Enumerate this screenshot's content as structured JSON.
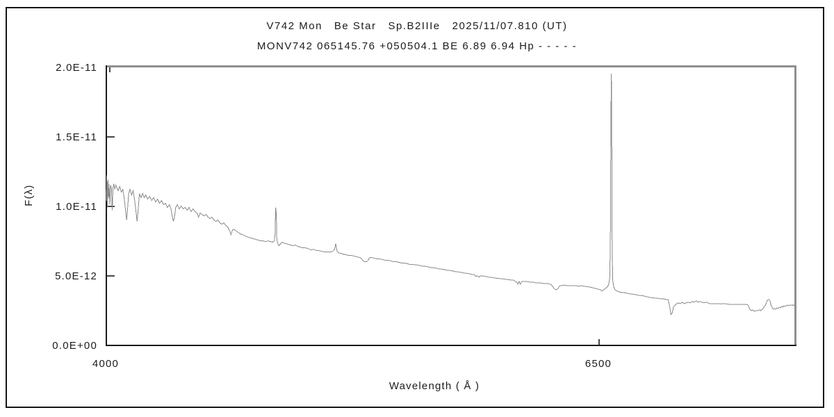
{
  "window": {
    "background": "#ffffff",
    "outer_border_color": "#151515",
    "frame_gray": "#8f8f8f",
    "frame_black": "#1a1a1a"
  },
  "chart_data": {
    "type": "line",
    "title": "V742 Mon   Be Star   Sp.B2IIIe   2025/11/07.810 (UT)",
    "subtitle": "MONV742 065145.76 +050504.1 BE 6.89 6.94 Hp - - - - -",
    "xlabel": "Wavelength ( Å )",
    "ylabel": "F(λ)",
    "xlim": [
      4000,
      7494
    ],
    "ylim_e12": [
      0,
      20
    ],
    "grid": false,
    "legend": false,
    "line_color": "#8a8a8a",
    "x_ticks": [
      {
        "value": 4000,
        "label": "4000"
      },
      {
        "value": 6500,
        "label": "6500"
      }
    ],
    "y_ticks": [
      {
        "value_e12": 0,
        "label": "0.0E+00"
      },
      {
        "value_e12": 5,
        "label": "5.0E-12"
      },
      {
        "value_e12": 10,
        "label": "1.0E-11"
      },
      {
        "value_e12": 15,
        "label": "1.5E-11"
      },
      {
        "value_e12": 20,
        "label": "2.0E-11"
      }
    ],
    "flux_scale": "points give [wavelength_angstrom, flux_times_1e12]",
    "points": [
      [
        4000,
        10.4
      ],
      [
        4002,
        12.2
      ],
      [
        4005,
        9.9
      ],
      [
        4008,
        11.9
      ],
      [
        4011,
        10.5
      ],
      [
        4014,
        11.6
      ],
      [
        4018,
        10.1
      ],
      [
        4022,
        11.5
      ],
      [
        4026,
        11.2
      ],
      [
        4030,
        9.7
      ],
      [
        4034,
        11.3
      ],
      [
        4038,
        11.6
      ],
      [
        4043,
        11.2
      ],
      [
        4048,
        11.5
      ],
      [
        4060,
        11.1
      ],
      [
        4068,
        11.4
      ],
      [
        4076,
        11.0
      ],
      [
        4084,
        11.2
      ],
      [
        4092,
        10.4
      ],
      [
        4098,
        9.6
      ],
      [
        4103,
        9.0
      ],
      [
        4108,
        9.8
      ],
      [
        4113,
        10.9
      ],
      [
        4120,
        11.2
      ],
      [
        4128,
        10.8
      ],
      [
        4136,
        11.1
      ],
      [
        4144,
        10.4
      ],
      [
        4150,
        9.7
      ],
      [
        4156,
        8.9
      ],
      [
        4162,
        9.8
      ],
      [
        4168,
        10.9
      ],
      [
        4176,
        10.6
      ],
      [
        4184,
        10.9
      ],
      [
        4192,
        10.6
      ],
      [
        4200,
        10.8
      ],
      [
        4210,
        10.5
      ],
      [
        4220,
        10.7
      ],
      [
        4230,
        10.4
      ],
      [
        4240,
        10.6
      ],
      [
        4250,
        10.3
      ],
      [
        4260,
        10.5
      ],
      [
        4270,
        10.2
      ],
      [
        4280,
        10.4
      ],
      [
        4290,
        10.1
      ],
      [
        4300,
        10.2
      ],
      [
        4310,
        9.9
      ],
      [
        4320,
        10.1
      ],
      [
        4328,
        9.8
      ],
      [
        4334,
        9.3
      ],
      [
        4340,
        8.9
      ],
      [
        4346,
        9.2
      ],
      [
        4352,
        9.9
      ],
      [
        4360,
        10.1
      ],
      [
        4370,
        9.8
      ],
      [
        4380,
        10.0
      ],
      [
        4390,
        9.8
      ],
      [
        4400,
        9.9
      ],
      [
        4410,
        9.7
      ],
      [
        4420,
        9.9
      ],
      [
        4430,
        9.6
      ],
      [
        4440,
        9.8
      ],
      [
        4450,
        9.6
      ],
      [
        4460,
        9.5
      ],
      [
        4468,
        9.2
      ],
      [
        4476,
        9.5
      ],
      [
        4486,
        9.4
      ],
      [
        4496,
        9.3
      ],
      [
        4506,
        9.4
      ],
      [
        4516,
        9.2
      ],
      [
        4526,
        9.1
      ],
      [
        4536,
        9.2
      ],
      [
        4546,
        9.0
      ],
      [
        4556,
        8.9
      ],
      [
        4566,
        9.0
      ],
      [
        4576,
        8.8
      ],
      [
        4586,
        8.7
      ],
      [
        4596,
        8.8
      ],
      [
        4606,
        8.6
      ],
      [
        4616,
        8.5
      ],
      [
        4626,
        8.2
      ],
      [
        4632,
        7.95
      ],
      [
        4640,
        8.3
      ],
      [
        4650,
        8.3
      ],
      [
        4660,
        8.2
      ],
      [
        4670,
        8.1
      ],
      [
        4680,
        8.0
      ],
      [
        4690,
        7.95
      ],
      [
        4700,
        7.9
      ],
      [
        4712,
        7.8
      ],
      [
        4724,
        7.75
      ],
      [
        4736,
        7.7
      ],
      [
        4748,
        7.65
      ],
      [
        4760,
        7.6
      ],
      [
        4772,
        7.55
      ],
      [
        4784,
        7.5
      ],
      [
        4796,
        7.5
      ],
      [
        4808,
        7.45
      ],
      [
        4820,
        7.5
      ],
      [
        4832,
        7.45
      ],
      [
        4844,
        7.4
      ],
      [
        4852,
        7.5
      ],
      [
        4856,
        8.0
      ],
      [
        4859,
        9.9
      ],
      [
        4862,
        9.5
      ],
      [
        4865,
        7.6
      ],
      [
        4870,
        7.3
      ],
      [
        4876,
        7.15
      ],
      [
        4884,
        7.3
      ],
      [
        4892,
        7.4
      ],
      [
        4900,
        7.35
      ],
      [
        4912,
        7.3
      ],
      [
        4924,
        7.25
      ],
      [
        4936,
        7.2
      ],
      [
        4948,
        7.15
      ],
      [
        4960,
        7.2
      ],
      [
        4972,
        7.1
      ],
      [
        4984,
        7.05
      ],
      [
        4996,
        7.0
      ],
      [
        5010,
        7.0
      ],
      [
        5024,
        6.95
      ],
      [
        5038,
        6.85
      ],
      [
        5052,
        6.9
      ],
      [
        5066,
        6.8
      ],
      [
        5080,
        6.8
      ],
      [
        5094,
        6.75
      ],
      [
        5108,
        6.7
      ],
      [
        5122,
        6.7
      ],
      [
        5136,
        6.7
      ],
      [
        5148,
        6.75
      ],
      [
        5158,
        6.9
      ],
      [
        5164,
        7.3
      ],
      [
        5170,
        6.8
      ],
      [
        5178,
        6.65
      ],
      [
        5190,
        6.6
      ],
      [
        5204,
        6.55
      ],
      [
        5218,
        6.5
      ],
      [
        5232,
        6.45
      ],
      [
        5246,
        6.45
      ],
      [
        5260,
        6.4
      ],
      [
        5274,
        6.35
      ],
      [
        5288,
        6.3
      ],
      [
        5296,
        6.2
      ],
      [
        5304,
        6.05
      ],
      [
        5312,
        6.0
      ],
      [
        5320,
        6.0
      ],
      [
        5328,
        6.1
      ],
      [
        5336,
        6.3
      ],
      [
        5348,
        6.3
      ],
      [
        5362,
        6.25
      ],
      [
        5376,
        6.2
      ],
      [
        5390,
        6.2
      ],
      [
        5404,
        6.15
      ],
      [
        5418,
        6.1
      ],
      [
        5432,
        6.1
      ],
      [
        5446,
        6.05
      ],
      [
        5460,
        6.0
      ],
      [
        5474,
        6.0
      ],
      [
        5488,
        5.95
      ],
      [
        5502,
        5.9
      ],
      [
        5516,
        5.9
      ],
      [
        5530,
        5.85
      ],
      [
        5544,
        5.8
      ],
      [
        5558,
        5.8
      ],
      [
        5572,
        5.78
      ],
      [
        5586,
        5.75
      ],
      [
        5600,
        5.7
      ],
      [
        5614,
        5.68
      ],
      [
        5628,
        5.65
      ],
      [
        5642,
        5.6
      ],
      [
        5656,
        5.58
      ],
      [
        5670,
        5.55
      ],
      [
        5684,
        5.5
      ],
      [
        5698,
        5.48
      ],
      [
        5712,
        5.45
      ],
      [
        5726,
        5.4
      ],
      [
        5740,
        5.38
      ],
      [
        5754,
        5.35
      ],
      [
        5768,
        5.3
      ],
      [
        5782,
        5.28
      ],
      [
        5796,
        5.25
      ],
      [
        5810,
        5.2
      ],
      [
        5824,
        5.18
      ],
      [
        5838,
        5.15
      ],
      [
        5852,
        5.1
      ],
      [
        5866,
        5.08
      ],
      [
        5874,
        4.95
      ],
      [
        5882,
        5.0
      ],
      [
        5890,
        4.9
      ],
      [
        5898,
        5.0
      ],
      [
        5912,
        4.98
      ],
      [
        5926,
        4.95
      ],
      [
        5940,
        4.9
      ],
      [
        5954,
        4.88
      ],
      [
        5968,
        4.85
      ],
      [
        5982,
        4.82
      ],
      [
        5996,
        4.8
      ],
      [
        6010,
        4.78
      ],
      [
        6024,
        4.75
      ],
      [
        6038,
        4.72
      ],
      [
        6052,
        4.7
      ],
      [
        6066,
        4.68
      ],
      [
        6080,
        4.55
      ],
      [
        6088,
        4.4
      ],
      [
        6094,
        4.6
      ],
      [
        6100,
        4.38
      ],
      [
        6108,
        4.6
      ],
      [
        6120,
        4.6
      ],
      [
        6134,
        4.58
      ],
      [
        6148,
        4.55
      ],
      [
        6162,
        4.55
      ],
      [
        6176,
        4.5
      ],
      [
        6190,
        4.5
      ],
      [
        6204,
        4.48
      ],
      [
        6218,
        4.45
      ],
      [
        6232,
        4.45
      ],
      [
        6246,
        4.42
      ],
      [
        6258,
        4.35
      ],
      [
        6266,
        4.2
      ],
      [
        6274,
        4.05
      ],
      [
        6282,
        4.0
      ],
      [
        6290,
        4.05
      ],
      [
        6298,
        4.25
      ],
      [
        6310,
        4.3
      ],
      [
        6324,
        4.32
      ],
      [
        6338,
        4.3
      ],
      [
        6352,
        4.3
      ],
      [
        6366,
        4.28
      ],
      [
        6380,
        4.3
      ],
      [
        6394,
        4.25
      ],
      [
        6408,
        4.28
      ],
      [
        6422,
        4.25
      ],
      [
        6436,
        4.22
      ],
      [
        6450,
        4.2
      ],
      [
        6464,
        4.15
      ],
      [
        6478,
        4.1
      ],
      [
        6492,
        4.05
      ],
      [
        6506,
        4.0
      ],
      [
        6515,
        3.9
      ],
      [
        6524,
        4.0
      ],
      [
        6533,
        4.1
      ],
      [
        6542,
        4.2
      ],
      [
        6549,
        4.4
      ],
      [
        6554,
        4.9
      ],
      [
        6557,
        7.5
      ],
      [
        6560,
        16.8
      ],
      [
        6562,
        19.5
      ],
      [
        6564,
        15.0
      ],
      [
        6566,
        7.0
      ],
      [
        6569,
        4.7
      ],
      [
        6574,
        4.2
      ],
      [
        6580,
        4.0
      ],
      [
        6590,
        3.9
      ],
      [
        6600,
        3.85
      ],
      [
        6614,
        3.8
      ],
      [
        6628,
        3.78
      ],
      [
        6642,
        3.75
      ],
      [
        6656,
        3.7
      ],
      [
        6670,
        3.68
      ],
      [
        6684,
        3.65
      ],
      [
        6698,
        3.6
      ],
      [
        6712,
        3.58
      ],
      [
        6726,
        3.55
      ],
      [
        6740,
        3.5
      ],
      [
        6754,
        3.45
      ],
      [
        6768,
        3.42
      ],
      [
        6782,
        3.4
      ],
      [
        6796,
        3.38
      ],
      [
        6810,
        3.35
      ],
      [
        6824,
        3.35
      ],
      [
        6838,
        3.3
      ],
      [
        6850,
        3.28
      ],
      [
        6858,
        2.8
      ],
      [
        6864,
        2.2
      ],
      [
        6870,
        2.3
      ],
      [
        6878,
        2.8
      ],
      [
        6886,
        2.9
      ],
      [
        6894,
        3.0
      ],
      [
        6902,
        3.05
      ],
      [
        6912,
        3.0
      ],
      [
        6922,
        3.1
      ],
      [
        6932,
        3.0
      ],
      [
        6942,
        3.05
      ],
      [
        6952,
        3.1
      ],
      [
        6962,
        3.05
      ],
      [
        6972,
        3.15
      ],
      [
        6982,
        3.1
      ],
      [
        6992,
        3.2
      ],
      [
        7002,
        3.1
      ],
      [
        7012,
        3.15
      ],
      [
        7022,
        3.1
      ],
      [
        7032,
        3.05
      ],
      [
        7042,
        3.1
      ],
      [
        7052,
        3.05
      ],
      [
        7062,
        3.0
      ],
      [
        7076,
        3.0
      ],
      [
        7090,
        3.0
      ],
      [
        7104,
        3.0
      ],
      [
        7118,
        2.98
      ],
      [
        7132,
        3.0
      ],
      [
        7146,
        2.98
      ],
      [
        7160,
        2.95
      ],
      [
        7174,
        2.95
      ],
      [
        7188,
        2.95
      ],
      [
        7202,
        2.95
      ],
      [
        7216,
        2.95
      ],
      [
        7230,
        2.95
      ],
      [
        7244,
        2.95
      ],
      [
        7256,
        2.9
      ],
      [
        7264,
        2.6
      ],
      [
        7272,
        2.5
      ],
      [
        7280,
        2.55
      ],
      [
        7288,
        2.45
      ],
      [
        7296,
        2.5
      ],
      [
        7304,
        2.5
      ],
      [
        7312,
        2.55
      ],
      [
        7320,
        2.5
      ],
      [
        7328,
        2.6
      ],
      [
        7336,
        2.75
      ],
      [
        7344,
        2.9
      ],
      [
        7352,
        3.2
      ],
      [
        7360,
        3.3
      ],
      [
        7366,
        3.25
      ],
      [
        7372,
        2.9
      ],
      [
        7378,
        2.7
      ],
      [
        7384,
        2.6
      ],
      [
        7390,
        2.65
      ],
      [
        7396,
        2.6
      ],
      [
        7402,
        2.7
      ],
      [
        7408,
        2.65
      ],
      [
        7414,
        2.75
      ],
      [
        7420,
        2.7
      ],
      [
        7426,
        2.8
      ],
      [
        7432,
        2.75
      ],
      [
        7438,
        2.85
      ],
      [
        7444,
        2.8
      ],
      [
        7450,
        2.85
      ],
      [
        7456,
        2.9
      ],
      [
        7462,
        2.85
      ],
      [
        7468,
        2.9
      ],
      [
        7474,
        2.88
      ],
      [
        7480,
        2.92
      ],
      [
        7486,
        2.85
      ],
      [
        7492,
        2.95
      ]
    ]
  }
}
